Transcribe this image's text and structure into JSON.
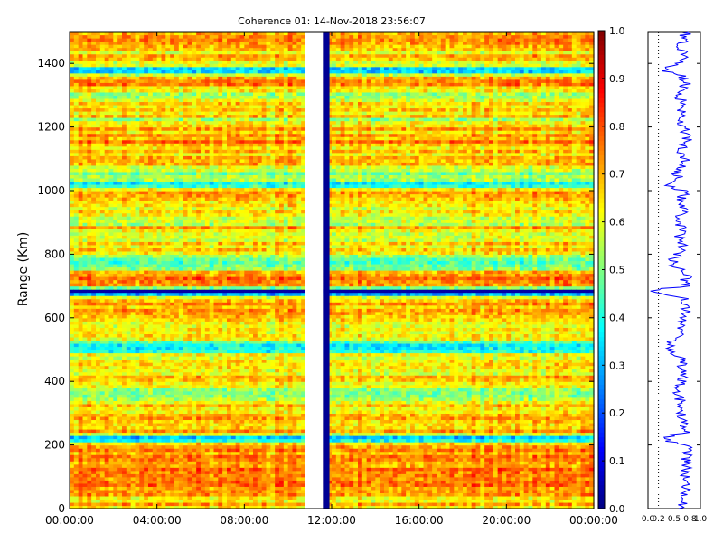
{
  "chart_data": [
    {
      "type": "heatmap",
      "title": "Coherence 01: 14-Nov-2018 23:56:07",
      "ylabel": "Range (Km)",
      "xlabel": "",
      "x_ticks": [
        "00:00:00",
        "04:00:00",
        "08:00:00",
        "12:00:00",
        "16:00:00",
        "20:00:00",
        "00:00:00"
      ],
      "y_ticks": [
        0,
        200,
        400,
        600,
        800,
        1000,
        1200,
        1400
      ],
      "ylim": [
        0,
        1500
      ],
      "xlim_hours": [
        0,
        24
      ],
      "gap_hours": [
        10.8,
        11.6
      ],
      "low_column_hours": [
        11.6,
        11.9
      ],
      "low_column_value": 0.02,
      "colormap": "jet",
      "colorbar": {
        "range": [
          0.0,
          1.0
        ],
        "ticks": [
          "0.0",
          "0.1",
          "0.2",
          "0.3",
          "0.4",
          "0.5",
          "0.6",
          "0.7",
          "0.8",
          "0.9",
          "1.0"
        ]
      },
      "range_profile": [
        {
          "range": 0,
          "value": 0.7
        },
        {
          "range": 25,
          "value": 0.65
        },
        {
          "range": 50,
          "value": 0.72
        },
        {
          "range": 75,
          "value": 0.74
        },
        {
          "range": 100,
          "value": 0.73
        },
        {
          "range": 125,
          "value": 0.74
        },
        {
          "range": 150,
          "value": 0.73
        },
        {
          "range": 175,
          "value": 0.74
        },
        {
          "range": 200,
          "value": 0.72
        },
        {
          "range": 220,
          "value": 0.25
        },
        {
          "range": 240,
          "value": 0.7
        },
        {
          "range": 260,
          "value": 0.62
        },
        {
          "range": 280,
          "value": 0.68
        },
        {
          "range": 300,
          "value": 0.64
        },
        {
          "range": 320,
          "value": 0.66
        },
        {
          "range": 340,
          "value": 0.62
        },
        {
          "range": 360,
          "value": 0.5
        },
        {
          "range": 380,
          "value": 0.55
        },
        {
          "range": 400,
          "value": 0.64
        },
        {
          "range": 420,
          "value": 0.66
        },
        {
          "range": 440,
          "value": 0.64
        },
        {
          "range": 460,
          "value": 0.66
        },
        {
          "range": 480,
          "value": 0.62
        },
        {
          "range": 500,
          "value": 0.4
        },
        {
          "range": 520,
          "value": 0.38
        },
        {
          "range": 540,
          "value": 0.64
        },
        {
          "range": 560,
          "value": 0.66
        },
        {
          "range": 580,
          "value": 0.62
        },
        {
          "range": 600,
          "value": 0.7
        },
        {
          "range": 620,
          "value": 0.72
        },
        {
          "range": 640,
          "value": 0.7
        },
        {
          "range": 660,
          "value": 0.68
        },
        {
          "range": 685,
          "value": 0.02
        },
        {
          "range": 700,
          "value": 0.74
        },
        {
          "range": 720,
          "value": 0.72
        },
        {
          "range": 740,
          "value": 0.74
        },
        {
          "range": 760,
          "value": 0.48
        },
        {
          "range": 780,
          "value": 0.46
        },
        {
          "range": 800,
          "value": 0.58
        },
        {
          "range": 820,
          "value": 0.66
        },
        {
          "range": 840,
          "value": 0.64
        },
        {
          "range": 860,
          "value": 0.6
        },
        {
          "range": 880,
          "value": 0.7
        },
        {
          "range": 900,
          "value": 0.55
        },
        {
          "range": 920,
          "value": 0.62
        },
        {
          "range": 940,
          "value": 0.66
        },
        {
          "range": 960,
          "value": 0.58
        },
        {
          "range": 980,
          "value": 0.66
        },
        {
          "range": 1000,
          "value": 0.68
        },
        {
          "range": 1020,
          "value": 0.38
        },
        {
          "range": 1040,
          "value": 0.62
        },
        {
          "range": 1060,
          "value": 0.52
        },
        {
          "range": 1080,
          "value": 0.66
        },
        {
          "range": 1100,
          "value": 0.7
        },
        {
          "range": 1120,
          "value": 0.64
        },
        {
          "range": 1140,
          "value": 0.68
        },
        {
          "range": 1160,
          "value": 0.74
        },
        {
          "range": 1180,
          "value": 0.72
        },
        {
          "range": 1200,
          "value": 0.66
        },
        {
          "range": 1220,
          "value": 0.55
        },
        {
          "range": 1240,
          "value": 0.68
        },
        {
          "range": 1260,
          "value": 0.62
        },
        {
          "range": 1280,
          "value": 0.66
        },
        {
          "range": 1300,
          "value": 0.54
        },
        {
          "range": 1320,
          "value": 0.66
        },
        {
          "range": 1340,
          "value": 0.74
        },
        {
          "range": 1360,
          "value": 0.66
        },
        {
          "range": 1380,
          "value": 0.3
        },
        {
          "range": 1400,
          "value": 0.62
        },
        {
          "range": 1420,
          "value": 0.68
        },
        {
          "range": 1440,
          "value": 0.64
        },
        {
          "range": 1460,
          "value": 0.66
        },
        {
          "range": 1480,
          "value": 0.7
        },
        {
          "range": 1500,
          "value": 0.72
        }
      ]
    },
    {
      "type": "line",
      "title": "",
      "xlabel": "",
      "ylabel": "",
      "x_ticks": [
        "0.0",
        "0.2",
        "0.5",
        "0.8",
        "1.0"
      ],
      "xlim": [
        0,
        1
      ],
      "ylim": [
        0,
        1500
      ],
      "line_color": "#0000ff",
      "grid": "vertical dotted line at 0.2"
    }
  ]
}
